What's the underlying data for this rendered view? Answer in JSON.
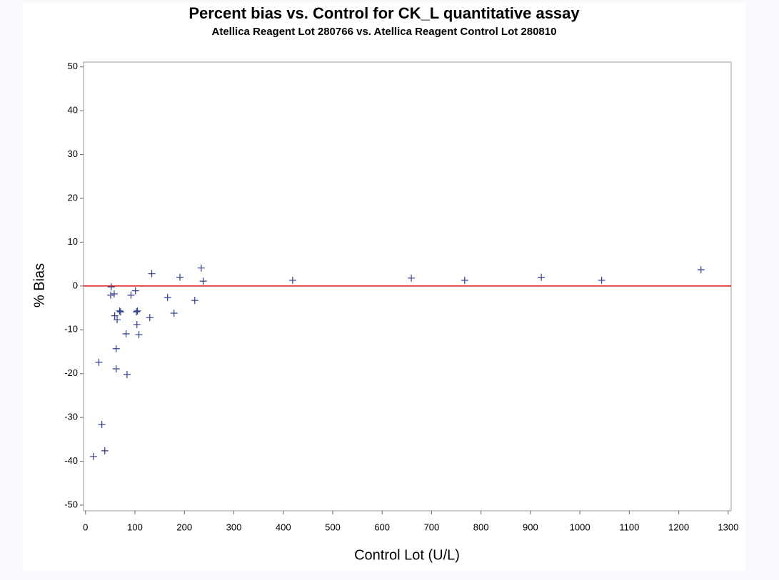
{
  "chart_data": {
    "type": "scatter",
    "title": "Percent bias vs. Control for CK_L quantitative assay",
    "subtitle": "Atellica Reagent Lot 280766 vs. Atellica Reagent Control Lot 280810",
    "x_label": "Control Lot (U/L)",
    "y_label": "% Bias",
    "series": [
      {
        "color": "#2e3d8c",
        "x": [
          16,
          27,
          33,
          39,
          51,
          52,
          58,
          59,
          64,
          62,
          62,
          69,
          71,
          82,
          84,
          92,
          101,
          103,
          105,
          104,
          108,
          130,
          134,
          166,
          179,
          191,
          221,
          234,
          238,
          419,
          659,
          767,
          922,
          1044,
          1245
        ],
        "values": [
          -38.9,
          -17.4,
          -31.6,
          -37.6,
          -2.1,
          -0.2,
          -1.8,
          -6.8,
          -7.7,
          -14.3,
          -18.9,
          -5.7,
          -5.9,
          -10.9,
          -20.2,
          -2.1,
          -1.1,
          -5.9,
          -5.7,
          -8.8,
          -11.1,
          -7.2,
          2.8,
          -2.6,
          -6.2,
          2.0,
          -3.3,
          4.1,
          1.1,
          1.3,
          1.8,
          1.3,
          2.0,
          1.3,
          3.7
        ]
      }
    ],
    "reference_line": {
      "y": 0,
      "color": "#e01010"
    },
    "xlim": [
      -4,
      1306
    ],
    "ylim": [
      -51.3,
      51.1
    ],
    "xticks": [
      0,
      100,
      200,
      300,
      400,
      500,
      600,
      700,
      800,
      900,
      1000,
      1100,
      1200,
      1300
    ],
    "yticks": [
      -50,
      -40,
      -30,
      -20,
      -10,
      0,
      10,
      20,
      30,
      40,
      50
    ]
  }
}
